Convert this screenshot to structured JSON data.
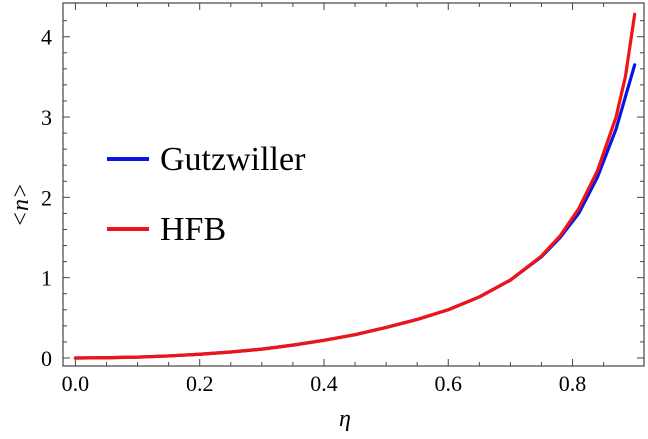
{
  "chart_data": {
    "type": "line",
    "xlabel": "η",
    "ylabel": "<n>",
    "xlim": [
      -0.02,
      0.915
    ],
    "ylim": [
      -0.1,
      4.42
    ],
    "x_ticks": [
      0.0,
      0.2,
      0.4,
      0.6,
      0.8
    ],
    "x_tick_labels": [
      "0.0",
      "0.2",
      "0.4",
      "0.6",
      "0.8"
    ],
    "y_ticks": [
      0,
      1,
      2,
      3,
      4
    ],
    "y_tick_labels": [
      "0",
      "1",
      "2",
      "3",
      "4"
    ],
    "grid": false,
    "legend_position": "middle-left",
    "series": [
      {
        "name": "Gutzwiller",
        "color": "#0a14e6",
        "x": [
          0.0,
          0.05,
          0.1,
          0.15,
          0.2,
          0.25,
          0.3,
          0.35,
          0.4,
          0.45,
          0.5,
          0.55,
          0.6,
          0.65,
          0.7,
          0.75,
          0.78,
          0.81,
          0.84,
          0.87,
          0.9
        ],
        "y": [
          0.0,
          0.003,
          0.011,
          0.025,
          0.046,
          0.074,
          0.11,
          0.16,
          0.22,
          0.29,
          0.38,
          0.48,
          0.6,
          0.76,
          0.97,
          1.26,
          1.5,
          1.8,
          2.25,
          2.85,
          3.65
        ]
      },
      {
        "name": "HFB",
        "color": "#f01414",
        "x": [
          0.0,
          0.05,
          0.1,
          0.15,
          0.2,
          0.25,
          0.3,
          0.35,
          0.4,
          0.45,
          0.5,
          0.55,
          0.6,
          0.65,
          0.7,
          0.75,
          0.78,
          0.81,
          0.84,
          0.87,
          0.885,
          0.9
        ],
        "y": [
          0.0,
          0.003,
          0.011,
          0.025,
          0.046,
          0.074,
          0.11,
          0.16,
          0.22,
          0.29,
          0.38,
          0.48,
          0.6,
          0.76,
          0.97,
          1.27,
          1.52,
          1.86,
          2.33,
          3.0,
          3.5,
          4.28
        ]
      }
    ]
  }
}
